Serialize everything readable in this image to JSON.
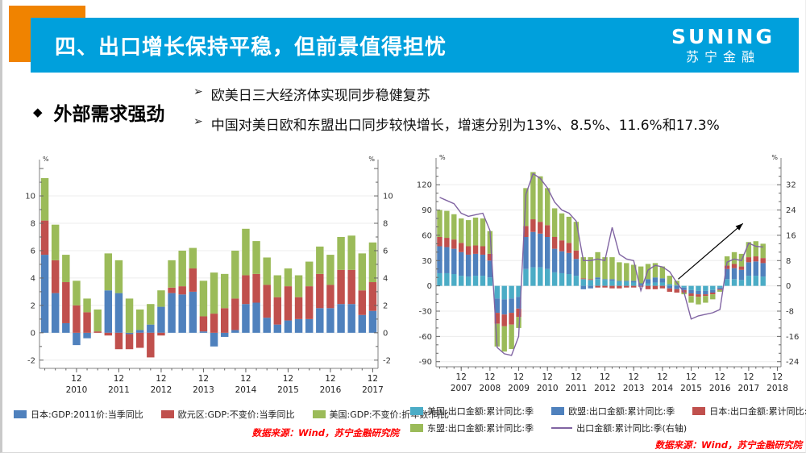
{
  "header": {
    "title": "四、出口增长保持平稳，但前景值得担忧",
    "logo_main": "SUNING",
    "logo_sub": "苏宁金融"
  },
  "bullets": {
    "marker": "◆",
    "heading": "外部需求强劲",
    "arrow": "➢",
    "items": [
      "欧美日三大经济体实现同步稳健复苏",
      "中国对美日欧和东盟出口同步较快增长，增速分别为13%、8.5%、11.6%和17.3%"
    ]
  },
  "colors": {
    "banner": "#00A0DC",
    "accent_orange": "#F08300",
    "source_text": "#FF0000",
    "line": "#8064A2"
  },
  "sources": {
    "left": "数据来源：Wind，苏宁金融研究院",
    "right": "数据来源：Wind，苏宁金融研究院"
  },
  "chart_data": [
    {
      "type": "bar",
      "stacked": true,
      "axis_unit": "%",
      "x_minor_label": "12",
      "years": [
        "2010",
        "2011",
        "2012",
        "2013",
        "2014",
        "2015",
        "2016",
        "2017"
      ],
      "quarters_per_year": 4,
      "ylim": [
        -2.6,
        12.3
      ],
      "yticks": [
        -2,
        0,
        2,
        4,
        6,
        8,
        10
      ],
      "grid": true,
      "legend_position": "bottom",
      "series": [
        {
          "name": "日本:GDP:2011价:当季同比",
          "color": "#4F81BD",
          "values": [
            5.7,
            2.9,
            0.7,
            -0.9,
            -0.4,
            0,
            3.1,
            2.9,
            -0.1,
            0.2,
            0.6,
            1.9,
            2.9,
            2.8,
            3,
            0.1,
            -1,
            -0.3,
            0.2,
            2.1,
            2.2,
            1.1,
            0.6,
            0.9,
            1,
            1,
            1.8,
            1.8,
            2.1,
            2.1,
            1.3,
            1.6
          ]
        },
        {
          "name": "欧元区:GDP:不变价:当季同比",
          "color": "#C0504D",
          "values": [
            2.5,
            2.4,
            3,
            2,
            1.5,
            0.1,
            -0.2,
            -1.2,
            -1.1,
            -1.1,
            -1.8,
            -0.2,
            0.4,
            0.6,
            1.7,
            1.1,
            1.4,
            1.8,
            2.3,
            2.1,
            2.1,
            2.4,
            2,
            2.5,
            1.6,
            2.4,
            2.5,
            1.7,
            2.5,
            2.5,
            1.8,
            2.1
          ]
        },
        {
          "name": "美国:GDP:不变价:折年数:同比",
          "color": "#9BBB59",
          "values": [
            3.1,
            2.6,
            2,
            1.8,
            1,
            1.6,
            2.7,
            2.4,
            2.5,
            1.5,
            1.5,
            1.2,
            2,
            2.6,
            1.5,
            2.6,
            3,
            2.5,
            3.5,
            3.4,
            2.4,
            2,
            1.6,
            1.3,
            1.6,
            1.8,
            2,
            2.2,
            2.4,
            2.5,
            2.7,
            2.9
          ]
        }
      ]
    },
    {
      "type": "bar+line",
      "stacked": true,
      "axis_unit": "%",
      "x_minor_label": "12",
      "years": [
        "2007",
        "2008",
        "2009",
        "2010",
        "2011",
        "2012",
        "2013",
        "2014",
        "2015",
        "2016",
        "2017",
        "2018"
      ],
      "quarters_per_year": 4,
      "total_slots": 48,
      "ylim_left": [
        -96,
        146
      ],
      "yticks_left": [
        -90,
        -60,
        -30,
        0,
        30,
        60,
        90,
        120
      ],
      "yticks_right": [
        -24,
        -16,
        -8,
        0,
        8,
        16,
        24,
        32
      ],
      "right_to_left_ratio": 3.75,
      "grid": true,
      "series": [
        {
          "name": "美国:出口金额:累计同比:季",
          "color": "#4BACC6",
          "values": [
            15,
            15,
            14,
            12,
            11,
            12,
            12,
            10,
            -15,
            -16,
            -15,
            -13,
            20,
            22,
            22,
            20,
            16,
            15,
            14,
            12,
            8,
            7,
            8,
            7,
            6,
            5,
            5,
            4,
            1,
            3,
            4,
            4,
            2,
            1,
            -2,
            -5,
            -6,
            -6,
            -5,
            -2,
            8,
            8,
            7,
            12,
            12,
            11
          ]
        },
        {
          "name": "欧盟:出口金额:累计同比:季",
          "color": "#4F81BD",
          "values": [
            32,
            31,
            30,
            28,
            26,
            26,
            25,
            20,
            -17,
            -18,
            -17,
            -14,
            38,
            42,
            40,
            38,
            28,
            26,
            25,
            20,
            -4,
            -3,
            2,
            1,
            2,
            1,
            1,
            2,
            2,
            5,
            6,
            5,
            -3,
            -4,
            -3,
            -4,
            -4,
            -4,
            -3,
            -2,
            12,
            13,
            12,
            16,
            17,
            16
          ]
        },
        {
          "name": "日本:出口金额:累计同比:季",
          "color": "#C0504D",
          "values": [
            11,
            11,
            11,
            11,
            10,
            10,
            10,
            8,
            -13,
            -14,
            -14,
            -10,
            13,
            15,
            14,
            14,
            14,
            13,
            12,
            10,
            1,
            1,
            -2,
            -2,
            -3,
            -3,
            -2,
            -2,
            -1,
            -4,
            -4,
            -3,
            -4,
            -4,
            -3,
            -3,
            -3,
            -2,
            -2,
            -1,
            4,
            5,
            4,
            6,
            6,
            6
          ]
        },
        {
          "name": "东盟:出口金额:累计同比:季",
          "color": "#9BBB59",
          "values": [
            32,
            32,
            30,
            29,
            31,
            33,
            33,
            27,
            -27,
            -30,
            -29,
            -13,
            45,
            56,
            54,
            44,
            34,
            32,
            31,
            34,
            25,
            26,
            30,
            26,
            26,
            22,
            21,
            19,
            20,
            18,
            17,
            14,
            10,
            5,
            -2,
            -8,
            -9,
            -8,
            -6,
            -2,
            11,
            14,
            15,
            18,
            18,
            17
          ]
        }
      ],
      "line": {
        "name": "出口金额:累计同比:季(右轴)",
        "color": "#8064A2",
        "axis": "right",
        "values": [
          28,
          27,
          26,
          23,
          22,
          22.5,
          23,
          17.5,
          -19.5,
          -21.5,
          -22,
          -16,
          29,
          35.5,
          34,
          31,
          26.5,
          24,
          23,
          20.5,
          8,
          8,
          8.5,
          8,
          18.5,
          10,
          8.5,
          8,
          -1.5,
          5,
          6.5,
          6,
          4.5,
          1,
          -2,
          -10.5,
          -9.5,
          -9,
          -8.5,
          -7.5,
          7.5,
          8.5,
          8,
          13.5,
          12.5,
          12.3
        ]
      },
      "annotation": {
        "type": "arrow",
        "from": [
          33.2,
          8
        ],
        "to": [
          42.2,
          74
        ]
      }
    }
  ]
}
